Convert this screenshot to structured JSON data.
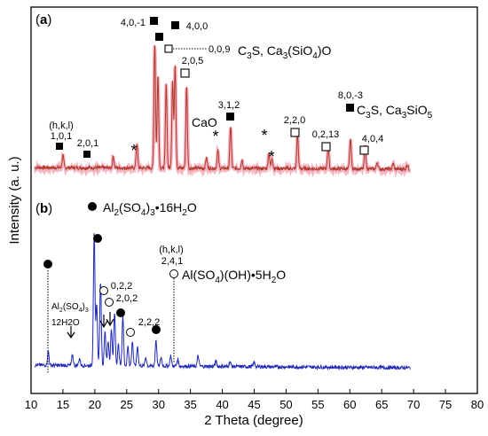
{
  "chart_data": {
    "type": "line",
    "xlabel": "2 Theta (degree)",
    "ylabel": "Intensity (a. u.)",
    "xlim": [
      10,
      80
    ],
    "xticks": [
      10,
      15,
      20,
      25,
      30,
      35,
      40,
      45,
      50,
      55,
      60,
      65,
      70,
      75,
      80
    ],
    "grid": false,
    "colors": {
      "upper_trace": "#b0382c",
      "upper_band": "#f4b8c4",
      "lower_trace": "#1f28b8",
      "ink": "#000000"
    },
    "panels": [
      {
        "label": "(a)",
        "annotations": [
          {
            "text": "(h,k,l)",
            "x": 15.1,
            "marker": "none"
          },
          {
            "text": "1,0,1",
            "x": 15.0,
            "marker": "filled-square"
          },
          {
            "text": "2,0,1",
            "x": 23.2,
            "marker": "filled-square"
          },
          {
            "text": "*",
            "x": 26.6,
            "marker": "none"
          },
          {
            "text": "4,0,-1",
            "x": 29.4,
            "marker": "filled-square"
          },
          {
            "text": "4,0,0",
            "x": 32.3,
            "marker": "filled-square"
          },
          {
            "text": "0,0,9",
            "x": 31.9,
            "marker": "open-square"
          },
          {
            "text": "2,0,5",
            "x": 34.4,
            "marker": "open-square"
          },
          {
            "text": "CaO",
            "x": 37.4,
            "marker": "none"
          },
          {
            "text": "*",
            "x": 39.5,
            "marker": "none"
          },
          {
            "text": "3,1,2",
            "x": 41.3,
            "marker": "filled-square"
          },
          {
            "text": "*",
            "x": 47.0,
            "marker": "none"
          },
          {
            "text": "*",
            "x": 47.8,
            "marker": "none"
          },
          {
            "text": "2,2,0",
            "x": 51.8,
            "marker": "open-square"
          },
          {
            "text": "0,2,13",
            "x": 56.6,
            "marker": "open-square"
          },
          {
            "text": "8,0,-3",
            "x": 60.1,
            "marker": "filled-square"
          },
          {
            "text": "4,0,4",
            "x": 62.4,
            "marker": "open-square"
          }
        ],
        "legend": [
          {
            "main": "C",
            "sub": "3",
            "rest": "S, Ca",
            "sub2": "3",
            "rest2": "(SiO",
            "sub3": "4",
            "rest3": ")O"
          },
          {
            "main": "C",
            "sub": "3",
            "rest": "S, Ca",
            "sub2": "3",
            "rest2": "SiO",
            "sub3": "5",
            "rest3": ""
          }
        ],
        "peaks": [
          {
            "x": 15.0,
            "y": 14
          },
          {
            "x": 22.9,
            "y": 13
          },
          {
            "x": 26.6,
            "y": 28
          },
          {
            "x": 29.4,
            "y": 142
          },
          {
            "x": 29.9,
            "y": 105
          },
          {
            "x": 31.2,
            "y": 95
          },
          {
            "x": 32.2,
            "y": 100
          },
          {
            "x": 32.6,
            "y": 118
          },
          {
            "x": 34.4,
            "y": 92
          },
          {
            "x": 37.5,
            "y": 12
          },
          {
            "x": 39.3,
            "y": 20
          },
          {
            "x": 41.3,
            "y": 48
          },
          {
            "x": 43.1,
            "y": 10
          },
          {
            "x": 47.3,
            "y": 18
          },
          {
            "x": 47.8,
            "y": 12
          },
          {
            "x": 51.8,
            "y": 38
          },
          {
            "x": 56.6,
            "y": 24
          },
          {
            "x": 60.1,
            "y": 34
          },
          {
            "x": 62.4,
            "y": 26
          },
          {
            "x": 64.3,
            "y": 8
          },
          {
            "x": 66.8,
            "y": 6
          },
          {
            "x": 69.0,
            "y": 5
          }
        ]
      },
      {
        "label": "(b)",
        "annotations": [
          {
            "text": "Al",
            "x": 17.0,
            "marker": "none"
          },
          {
            "text": "12H2O",
            "x": 16.6,
            "marker": "arrow"
          },
          {
            "text": "0,2,2",
            "x": 22.0,
            "marker": "open-circle"
          },
          {
            "text": "2,0,2",
            "x": 23.0,
            "marker": "open-circle"
          },
          {
            "text": "2,2,2",
            "x": 26.0,
            "marker": "open-circle"
          },
          {
            "text": "(h,k,l)",
            "x": 30.8,
            "marker": "none"
          },
          {
            "text": "2,4,1",
            "x": 32.6,
            "marker": "open-circle"
          }
        ],
        "legend": [
          {
            "text": "Al",
            "sub": "2",
            "text2": "(SO",
            "sub2": "4",
            "text3": ")",
            "sub3": "3",
            "text4": "•16H",
            "sub4": "2",
            "text5": "O",
            "marker": "filled-circle"
          },
          {
            "text": "Al(SO",
            "sub": "4",
            "text2": ")(OH)•5H",
            "sub2": "2",
            "text3": "O",
            "marker": "open-circle"
          }
        ],
        "sub_label": {
          "pre": "Al",
          "s1": "2",
          "mid": "(SO",
          "s2": "4",
          "post": ")",
          "s3": "3"
        },
        "peaks": [
          {
            "x": 12.7,
            "y": 16
          },
          {
            "x": 16.5,
            "y": 12
          },
          {
            "x": 17.6,
            "y": 8
          },
          {
            "x": 19.9,
            "y": 150
          },
          {
            "x": 20.3,
            "y": 70
          },
          {
            "x": 20.9,
            "y": 95
          },
          {
            "x": 21.6,
            "y": 40
          },
          {
            "x": 22.1,
            "y": 28
          },
          {
            "x": 22.6,
            "y": 42
          },
          {
            "x": 23.1,
            "y": 60
          },
          {
            "x": 23.7,
            "y": 24
          },
          {
            "x": 24.4,
            "y": 56
          },
          {
            "x": 25.2,
            "y": 22
          },
          {
            "x": 25.9,
            "y": 28
          },
          {
            "x": 26.7,
            "y": 22
          },
          {
            "x": 28.0,
            "y": 10
          },
          {
            "x": 29.6,
            "y": 30
          },
          {
            "x": 30.4,
            "y": 10
          },
          {
            "x": 31.9,
            "y": 12
          },
          {
            "x": 33.0,
            "y": 8
          },
          {
            "x": 36.2,
            "y": 12
          },
          {
            "x": 39.0,
            "y": 6
          },
          {
            "x": 41.2,
            "y": 6
          },
          {
            "x": 45.0,
            "y": 5
          }
        ]
      }
    ]
  }
}
